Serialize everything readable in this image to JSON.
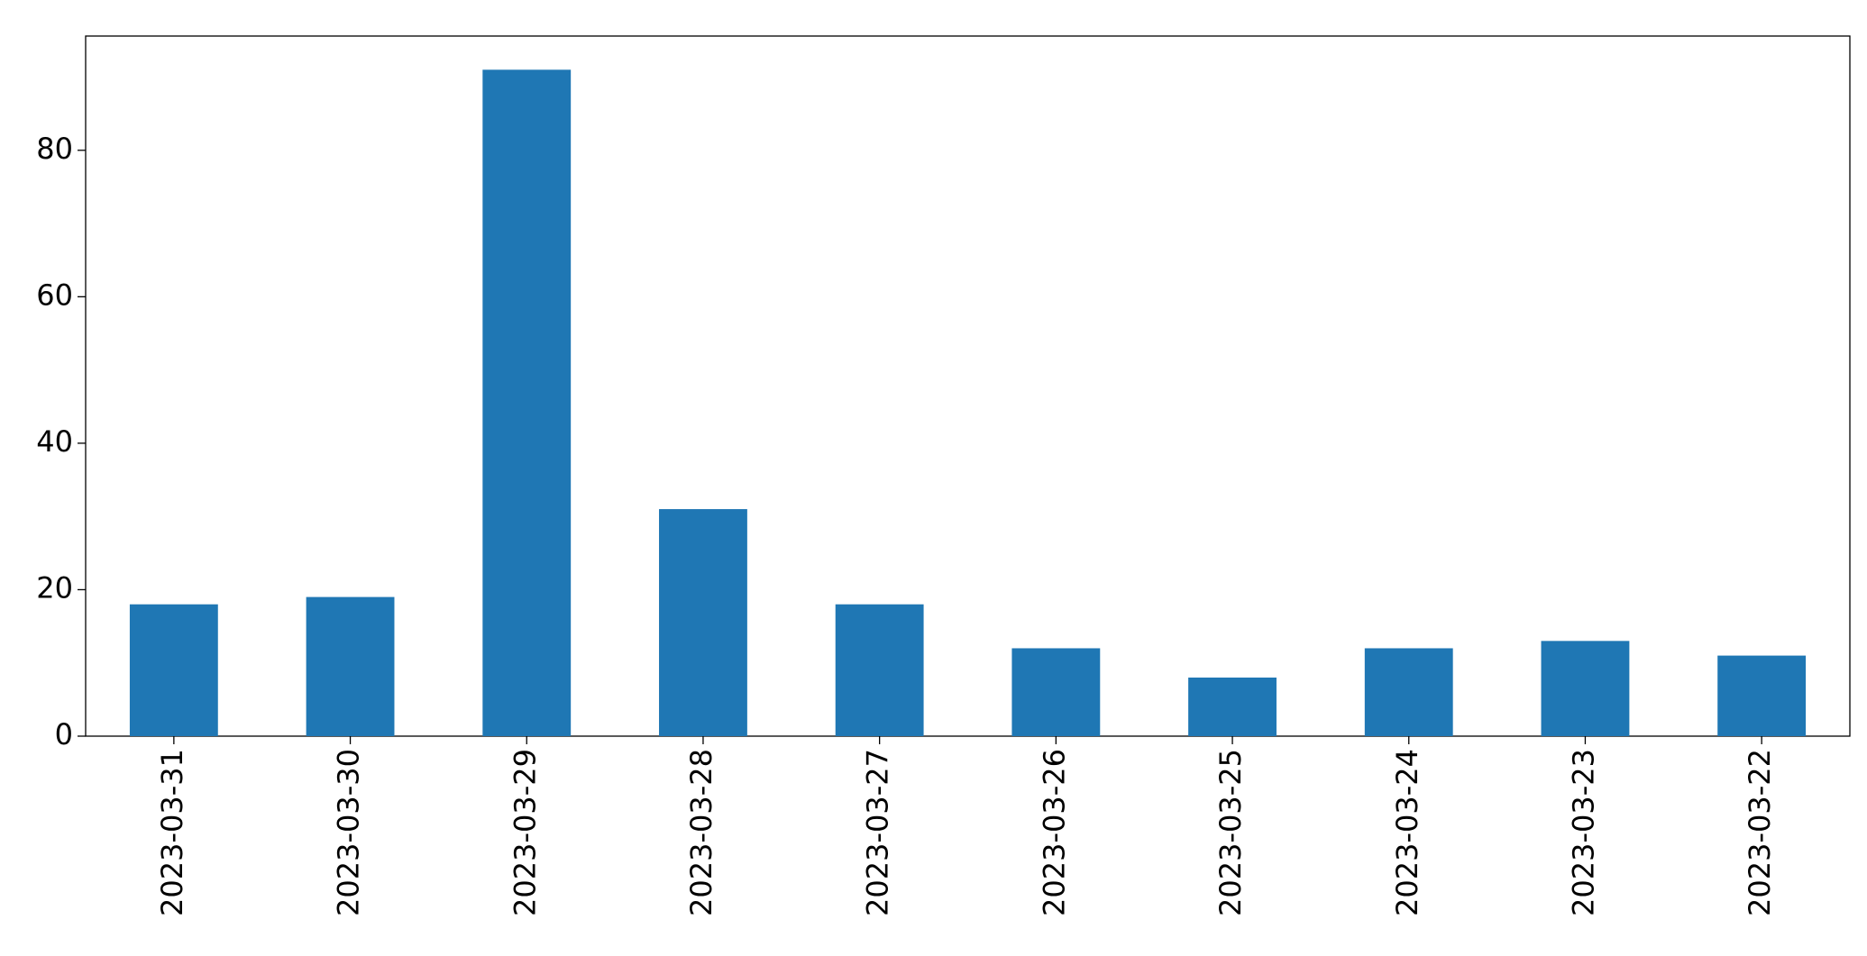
{
  "chart_data": {
    "type": "bar",
    "categories": [
      "2023-03-31",
      "2023-03-30",
      "2023-03-29",
      "2023-03-28",
      "2023-03-27",
      "2023-03-26",
      "2023-03-25",
      "2023-03-24",
      "2023-03-23",
      "2023-03-22"
    ],
    "values": [
      18,
      19,
      91,
      31,
      18,
      12,
      8,
      12,
      13,
      11
    ],
    "color": "#1f77b4",
    "ylim": [
      0,
      95.6
    ],
    "yticks": [
      0,
      20,
      40,
      60,
      80
    ],
    "grid": false
  }
}
